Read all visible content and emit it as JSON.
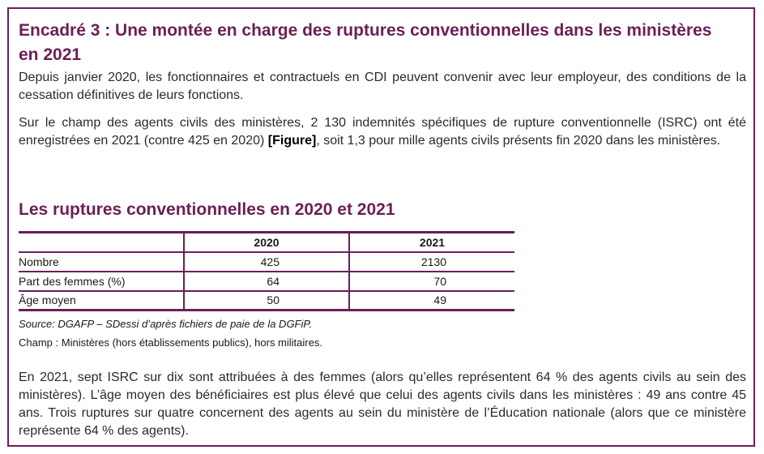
{
  "box": {
    "title": "Encadré 3 : Une montée en charge des ruptures conventionnelles dans les ministères en 2021",
    "para1": "Depuis janvier 2020, les fonctionnaires et contractuels en CDI peuvent convenir avec leur employeur, des conditions de la cessation définitives de leurs fonctions.",
    "para2_before": "Sur le champ des agents civils des ministères, 2 130 indemnités spécifiques de rupture conventionnelle (ISRC) ont été enregistrées en 2021 (contre 425 en 2020) ",
    "para2_ref": "[Figure]",
    "para2_after": ", soit 1,3 pour mille agents civils présents fin 2020 dans les ministères."
  },
  "table": {
    "title": "Les ruptures conventionnelles en 2020 et 2021",
    "headers": [
      "",
      "2020",
      "2021"
    ],
    "rows": [
      [
        "Nombre",
        "425",
        "2130"
      ],
      [
        "Part des femmes (%)",
        "64",
        "70"
      ],
      [
        "Âge moyen",
        "50",
        "49"
      ]
    ]
  },
  "source": "Source: DGAFP – SDessi d’après fichiers de paie de la DGFiP.",
  "champ": "Champ : Ministères (hors établissements publics), hors militaires.",
  "para3": "En 2021, sept ISRC sur dix sont attribuées à des femmes (alors qu’elles représentent 64 % des agents civils au sein des ministères). L’âge moyen des bénéficiaires est plus élevé que celui des agents civils dans les ministères : 49 ans contre 45 ans. Trois ruptures sur quatre concernent des agents au sein du ministère de l’Éducation nationale (alors que ce ministère représente 64 % des agents).",
  "colors": {
    "accent": "#6b1f57"
  }
}
